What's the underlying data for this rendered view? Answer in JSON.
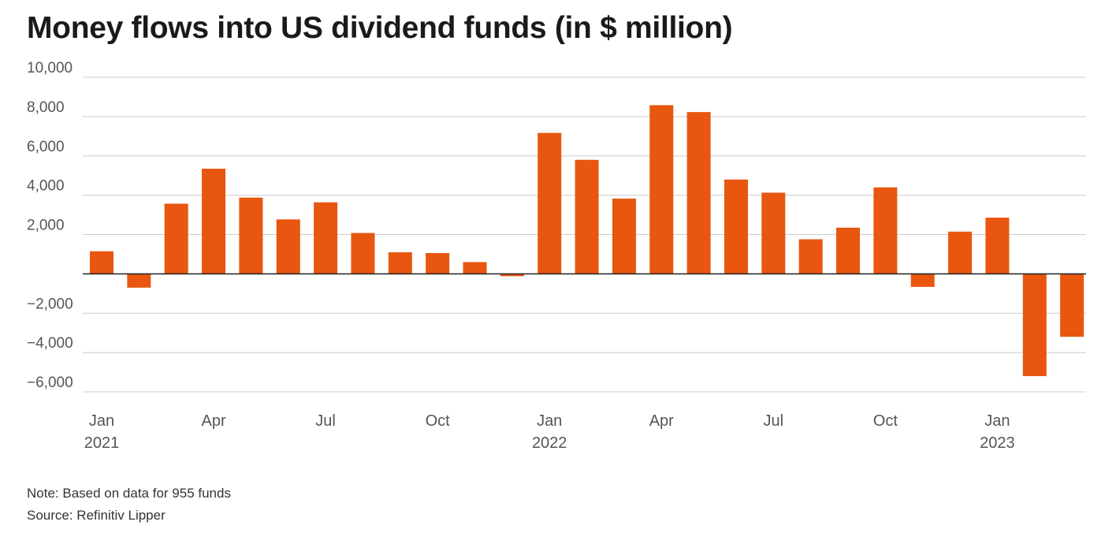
{
  "title": "Money flows into US dividend funds (in $ million)",
  "note": "Note: Based on data for 955 funds",
  "source": "Source: Refinitiv Lipper",
  "colors": {
    "bar": "#e8560f",
    "grid": "#cccccc",
    "zero_line": "#222222"
  },
  "chart_data": {
    "type": "bar",
    "title": "Money flows into US dividend funds (in $ million)",
    "categories": [
      "Jan 2021",
      "Feb 2021",
      "Mar 2021",
      "Apr 2021",
      "May 2021",
      "Jun 2021",
      "Jul 2021",
      "Aug 2021",
      "Sep 2021",
      "Oct 2021",
      "Nov 2021",
      "Dec 2021",
      "Jan 2022",
      "Feb 2022",
      "Mar 2022",
      "Apr 2022",
      "May 2022",
      "Jun 2022",
      "Jul 2022",
      "Aug 2022",
      "Sep 2022",
      "Oct 2022",
      "Nov 2022",
      "Dec 2022",
      "Jan 2023",
      "Feb 2023",
      "Mar 2023"
    ],
    "values": [
      1150,
      -700,
      3570,
      5350,
      3880,
      2770,
      3640,
      2080,
      1100,
      1060,
      600,
      -120,
      7170,
      5800,
      3830,
      8580,
      8230,
      4800,
      4130,
      1760,
      2350,
      4400,
      -660,
      2150,
      2860,
      -5200,
      -3200
    ],
    "ylim": [
      -6000,
      10000
    ],
    "yticks": [
      {
        "value": 10000,
        "label": "10,000"
      },
      {
        "value": 8000,
        "label": "8,000"
      },
      {
        "value": 6000,
        "label": "6,000"
      },
      {
        "value": 4000,
        "label": "4,000"
      },
      {
        "value": 2000,
        "label": "2,000"
      },
      {
        "value": -2000,
        "label": "−2,000"
      },
      {
        "value": -4000,
        "label": "−4,000"
      },
      {
        "value": -6000,
        "label": "−6,000"
      }
    ],
    "xticks": [
      {
        "index": 0,
        "month": "Jan",
        "year": "2021"
      },
      {
        "index": 3,
        "month": "Apr",
        "year": ""
      },
      {
        "index": 6,
        "month": "Jul",
        "year": ""
      },
      {
        "index": 9,
        "month": "Oct",
        "year": ""
      },
      {
        "index": 12,
        "month": "Jan",
        "year": "2022"
      },
      {
        "index": 15,
        "month": "Apr",
        "year": ""
      },
      {
        "index": 18,
        "month": "Jul",
        "year": ""
      },
      {
        "index": 21,
        "month": "Oct",
        "year": ""
      },
      {
        "index": 24,
        "month": "Jan",
        "year": "2023"
      }
    ],
    "grid": true,
    "legend": "none"
  }
}
